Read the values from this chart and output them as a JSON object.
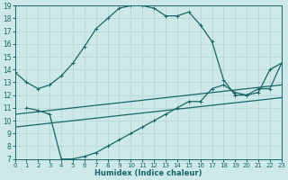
{
  "xlabel": "Humidex (Indice chaleur)",
  "xlim": [
    0,
    23
  ],
  "ylim": [
    7,
    19
  ],
  "xticks": [
    0,
    1,
    2,
    3,
    4,
    5,
    6,
    7,
    8,
    9,
    10,
    11,
    12,
    13,
    14,
    15,
    16,
    17,
    18,
    19,
    20,
    21,
    22,
    23
  ],
  "yticks": [
    7,
    8,
    9,
    10,
    11,
    12,
    13,
    14,
    15,
    16,
    17,
    18,
    19
  ],
  "bg_color": "#cce8e8",
  "grid_color": "#b0d4d4",
  "line_color": "#1a6666",
  "lines": [
    {
      "x": [
        0,
        1,
        2,
        3,
        4,
        5,
        6,
        7,
        8,
        9,
        10,
        11,
        12,
        13,
        14,
        15,
        16,
        17,
        18,
        19,
        20,
        21,
        22,
        23
      ],
      "y": [
        13.8,
        13.0,
        12.5,
        12.8,
        13.5,
        14.5,
        15.8,
        17.2,
        18.0,
        18.8,
        19.0,
        19.0,
        18.8,
        18.2,
        18.2,
        18.5,
        17.5,
        16.2,
        13.2,
        12.0,
        12.0,
        12.2,
        14.0,
        14.5
      ],
      "marker": "+"
    },
    {
      "x": [
        0,
        1,
        2,
        3,
        4,
        5,
        6,
        7,
        8,
        9,
        10,
        11,
        12,
        13,
        14,
        15,
        16,
        17,
        18,
        19,
        20,
        21,
        22,
        23
      ],
      "y": [
        10.5,
        10.6,
        10.7,
        10.8,
        10.9,
        11.0,
        11.1,
        11.2,
        11.3,
        11.4,
        11.5,
        11.6,
        11.7,
        11.8,
        11.9,
        12.0,
        12.1,
        12.2,
        12.3,
        12.4,
        12.5,
        12.6,
        12.7,
        12.8
      ],
      "marker": null
    },
    {
      "x": [
        0,
        1,
        2,
        3,
        4,
        5,
        6,
        7,
        8,
        9,
        10,
        11,
        12,
        13,
        14,
        15,
        16,
        17,
        18,
        19,
        20,
        21,
        22,
        23
      ],
      "y": [
        9.5,
        9.6,
        9.7,
        9.8,
        9.9,
        10.0,
        10.1,
        10.2,
        10.3,
        10.4,
        10.5,
        10.6,
        10.7,
        10.8,
        10.9,
        11.0,
        11.1,
        11.2,
        11.3,
        11.4,
        11.5,
        11.6,
        11.7,
        11.8
      ],
      "marker": null
    },
    {
      "x": [
        1,
        2,
        3,
        4,
        5,
        6,
        7,
        8,
        9,
        10,
        11,
        12,
        13,
        14,
        15,
        16,
        17,
        18,
        19,
        20,
        21,
        22,
        23
      ],
      "y": [
        11.0,
        10.8,
        10.5,
        7.0,
        7.0,
        7.2,
        7.5,
        8.0,
        8.5,
        9.0,
        9.5,
        10.0,
        10.5,
        11.0,
        11.5,
        11.5,
        12.5,
        12.8,
        12.2,
        12.0,
        12.5,
        12.5,
        14.5
      ],
      "marker": "+"
    }
  ]
}
